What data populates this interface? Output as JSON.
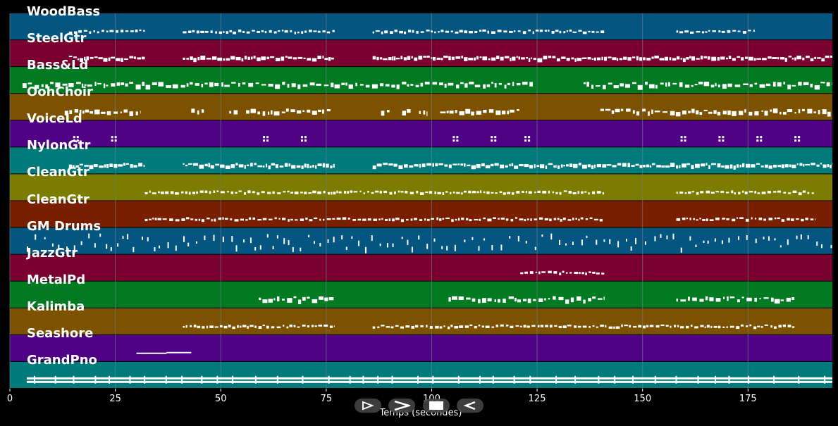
{
  "colors": {
    "background": "#000000",
    "tracks": [
      "#04557f",
      "#7a0030",
      "#027a22",
      "#7c5200",
      "#4f0283",
      "#007a7a",
      "#7c7c00",
      "#7a1e00"
    ],
    "notes": "#ffffff",
    "grid": "#6a7a8a"
  },
  "tracks": [
    {
      "name": "WoodBass"
    },
    {
      "name": "SteelGtr"
    },
    {
      "name": "Bass&Ld"
    },
    {
      "name": "OohChoir"
    },
    {
      "name": "VoiceLd"
    },
    {
      "name": "NylonGtr"
    },
    {
      "name": "CleanGtr"
    },
    {
      "name": "CleanGtr"
    },
    {
      "name": "GM Drums"
    },
    {
      "name": "JazzGtr"
    },
    {
      "name": "MetalPd"
    },
    {
      "name": "Kalimba"
    },
    {
      "name": "Seashore"
    },
    {
      "name": "GrandPno"
    }
  ],
  "axis": {
    "xlabel": "Temps (secondes)",
    "xlim": [
      0,
      195
    ],
    "ticks": [
      "0",
      "25",
      "50",
      "75",
      "100",
      "125",
      "150",
      "175"
    ],
    "tick_values": [
      0,
      25,
      50,
      75,
      100,
      125,
      150,
      175
    ]
  },
  "controls": [
    {
      "name": "play-icon"
    },
    {
      "name": "forward-icon"
    },
    {
      "name": "stop-icon"
    },
    {
      "name": "rewind-icon"
    }
  ],
  "chart_data": {
    "type": "piano-roll",
    "xlabel": "Temps (secondes)",
    "xlim": [
      0,
      195
    ],
    "grid": true,
    "series": [
      {
        "name": "WoodBass",
        "segments": [
          [
            14,
            32
          ],
          [
            41,
            77
          ],
          [
            86,
            141
          ],
          [
            158,
            177
          ]
        ],
        "style": "small"
      },
      {
        "name": "SteelGtr",
        "segments": [
          [
            14,
            32
          ],
          [
            41,
            77
          ],
          [
            86,
            195
          ]
        ],
        "style": "dense"
      },
      {
        "name": "Bass&Ld",
        "segments": [
          [
            3,
            124
          ],
          [
            136,
            195
          ]
        ],
        "style": "medium"
      },
      {
        "name": "OohChoir",
        "segments": [
          [
            13,
            31
          ],
          [
            43,
            46
          ],
          [
            52,
            54
          ],
          [
            56,
            76
          ],
          [
            88,
            90
          ],
          [
            93,
            95
          ],
          [
            97,
            99
          ],
          [
            102,
            121
          ],
          [
            140,
            195
          ]
        ],
        "style": "medium"
      },
      {
        "name": "VoiceLd",
        "points": [
          15,
          24,
          60,
          69,
          105,
          114,
          122,
          159,
          168,
          177,
          186
        ],
        "style": "sparse"
      },
      {
        "name": "NylonGtr",
        "segments": [
          [
            14,
            32
          ],
          [
            41,
            77
          ],
          [
            86,
            195
          ]
        ],
        "style": "dense"
      },
      {
        "name": "CleanGtr",
        "segments": [
          [
            32,
            141
          ],
          [
            158,
            191
          ]
        ],
        "style": "small"
      },
      {
        "name": "CleanGtr",
        "segments": [
          [
            32,
            141
          ],
          [
            158,
            191
          ]
        ],
        "style": "small"
      },
      {
        "name": "GM Drums",
        "segments": [
          [
            4,
            195
          ]
        ],
        "style": "drums"
      },
      {
        "name": "JazzGtr",
        "segments": [
          [
            121,
            141
          ]
        ],
        "style": "small"
      },
      {
        "name": "MetalPd",
        "segments": [
          [
            59,
            77
          ],
          [
            104,
            141
          ],
          [
            158,
            186
          ]
        ],
        "style": "medium"
      },
      {
        "name": "Kalimba",
        "segments": [
          [
            41,
            77
          ],
          [
            86,
            186
          ]
        ],
        "style": "small"
      },
      {
        "name": "Seashore",
        "segments": [
          [
            30,
            43
          ]
        ],
        "style": "line"
      },
      {
        "name": "GrandPno",
        "segments": [
          [
            4,
            195
          ]
        ],
        "style": "piano"
      }
    ]
  }
}
